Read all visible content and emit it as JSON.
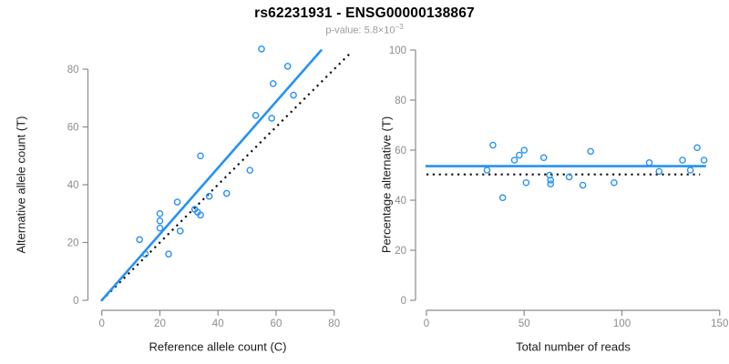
{
  "header": {
    "title": "rs62231931 - ENSG00000138867",
    "subtitle_prefix": "p-value: ",
    "subtitle_base": "5.8×10",
    "subtitle_exponent": "−3"
  },
  "colors": {
    "accent_blue": "#2691F5",
    "dotted_black": "#111111",
    "axis_gray": "#8c8c8c",
    "tick_label_gray": "#8c8c8c"
  },
  "chart_data": [
    {
      "type": "scatter",
      "panel": "left",
      "xlabel": "Reference allele count (C)",
      "ylabel": "Alternative allele count (T)",
      "xlim": [
        0,
        86
      ],
      "ylim": [
        0,
        87
      ],
      "xticks": [
        0,
        20,
        40,
        60,
        80
      ],
      "yticks": [
        0,
        20,
        40,
        60,
        80
      ],
      "grid": false,
      "legend": "none",
      "points": [
        [
          13,
          21
        ],
        [
          15,
          16
        ],
        [
          20,
          25
        ],
        [
          20,
          27.5
        ],
        [
          20,
          30
        ],
        [
          23,
          16
        ],
        [
          26,
          34
        ],
        [
          27,
          24
        ],
        [
          32,
          31.5
        ],
        [
          33,
          30.5
        ],
        [
          34,
          29.5
        ],
        [
          34,
          50
        ],
        [
          37,
          36
        ],
        [
          43,
          37
        ],
        [
          51,
          45
        ],
        [
          53,
          64
        ],
        [
          55,
          87
        ],
        [
          58.5,
          63
        ],
        [
          59,
          75
        ],
        [
          64,
          81
        ],
        [
          66,
          71
        ]
      ],
      "lines": {
        "fit": {
          "style": "solid",
          "color_key": "accent_blue",
          "x1": 0,
          "y1": 0,
          "x2": 75.5,
          "y2": 86.5
        },
        "identity": {
          "style": "dotted",
          "color_key": "dotted_black",
          "slope": 1,
          "intercept": 0,
          "x1": 0,
          "y1": 0,
          "x2": 86,
          "y2": 86
        }
      }
    },
    {
      "type": "scatter",
      "panel": "right",
      "xlabel": "Total number of reads",
      "ylabel": "Percentage alternative (T)",
      "xlim": [
        0,
        150
      ],
      "ylim": [
        0,
        100
      ],
      "xticks": [
        0,
        50,
        100,
        150
      ],
      "yticks": [
        0,
        20,
        40,
        60,
        80,
        100
      ],
      "grid": false,
      "legend": "none",
      "points": [
        [
          31,
          52
        ],
        [
          34,
          62
        ],
        [
          39,
          41
        ],
        [
          45,
          56
        ],
        [
          47.5,
          58
        ],
        [
          50,
          60
        ],
        [
          51,
          47
        ],
        [
          60,
          57
        ],
        [
          63,
          50
        ],
        [
          63.5,
          48
        ],
        [
          63.5,
          46.5
        ],
        [
          73,
          49.3
        ],
        [
          80,
          46
        ],
        [
          84,
          59.5
        ],
        [
          96,
          47
        ],
        [
          114,
          55
        ],
        [
          119,
          51.5
        ],
        [
          131,
          56
        ],
        [
          135,
          52
        ],
        [
          138.5,
          61
        ],
        [
          142,
          56
        ]
      ],
      "lines": {
        "mean": {
          "style": "solid",
          "color_key": "accent_blue",
          "y": 53.6
        },
        "expected": {
          "style": "dotted",
          "color_key": "dotted_black",
          "y": 50.3
        }
      }
    }
  ]
}
